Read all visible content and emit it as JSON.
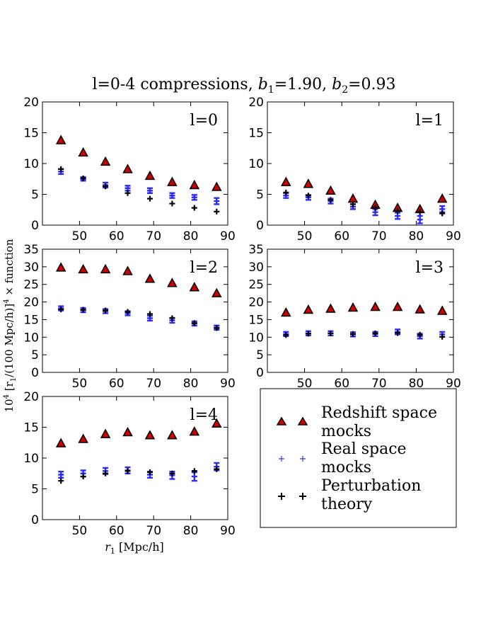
{
  "figure": {
    "title_main": "l=0-4 compressions, ",
    "b1_symbol": "b",
    "b1_sub": "1",
    "b1_value": "=1.90,  ",
    "b2_symbol": "b",
    "b2_sub": "2",
    "b2_value": "=0.93",
    "ylabel_prefix": "10",
    "ylabel_exp": "4",
    "ylabel_body": " [r",
    "ylabel_sub": "1",
    "ylabel_mid": "/(100  Mpc/h)]",
    "ylabel_exp2": "4",
    "ylabel_suffix": " × function",
    "xlabel_symbol": "r",
    "xlabel_sub": "1",
    "xlabel_units": "   [Mpc/h]"
  },
  "legend": [
    {
      "label_line1": "Redshift space",
      "label_line2": " mocks",
      "marker": "triangle",
      "color": "#cc0000"
    },
    {
      "label_line1": "Real space",
      "label_line2": " mocks",
      "marker": "plus",
      "color": "#3333ff"
    },
    {
      "label_line1": "Perturbation",
      "label_line2": " theory",
      "marker": "plus",
      "color": "#000000"
    }
  ],
  "chart_data": [
    {
      "type": "scatter",
      "panel_label": "l=0",
      "xlim": [
        40,
        90
      ],
      "ylim": [
        0,
        20
      ],
      "xticks": [
        50,
        60,
        70,
        80,
        90
      ],
      "yticks": [
        0,
        5,
        10,
        15,
        20
      ],
      "x": [
        45,
        51,
        57,
        63,
        69,
        75,
        81,
        87
      ],
      "series": [
        {
          "name": "Redshift space mocks",
          "values": [
            13.8,
            11.8,
            10.3,
            9.1,
            8.0,
            7.0,
            6.5,
            6.2
          ]
        },
        {
          "name": "Real space mocks",
          "values": [
            8.7,
            7.5,
            6.5,
            6.0,
            5.6,
            4.8,
            4.5,
            3.9
          ],
          "err": [
            0.4,
            0.3,
            0.4,
            0.4,
            0.4,
            0.4,
            0.4,
            0.5
          ]
        },
        {
          "name": "Perturbation theory",
          "values": [
            9.1,
            7.6,
            6.3,
            5.2,
            4.3,
            3.5,
            2.8,
            2.2
          ]
        }
      ]
    },
    {
      "type": "scatter",
      "panel_label": "l=1",
      "xlim": [
        40,
        90
      ],
      "ylim": [
        0,
        20
      ],
      "xticks": [
        50,
        60,
        70,
        80,
        90
      ],
      "yticks": [
        0,
        5,
        10,
        15,
        20
      ],
      "x": [
        45,
        51,
        57,
        63,
        69,
        75,
        81,
        87
      ],
      "series": [
        {
          "name": "Redshift space mocks",
          "values": [
            7.0,
            6.7,
            5.6,
            4.3,
            3.3,
            2.8,
            2.6,
            4.3
          ]
        },
        {
          "name": "Real space mocks",
          "values": [
            4.8,
            4.5,
            3.9,
            3.0,
            2.1,
            1.5,
            0.9,
            2.6
          ],
          "err": [
            0.4,
            0.4,
            0.4,
            0.4,
            0.5,
            0.5,
            0.6,
            0.5
          ]
        },
        {
          "name": "Perturbation theory",
          "values": [
            5.3,
            4.8,
            4.1,
            3.4,
            2.8,
            2.3,
            2.1,
            1.9
          ]
        }
      ]
    },
    {
      "type": "scatter",
      "panel_label": "l=2",
      "xlim": [
        40,
        90
      ],
      "ylim": [
        0,
        35
      ],
      "xticks": [
        50,
        60,
        70,
        80,
        90
      ],
      "yticks": [
        0,
        5,
        10,
        15,
        20,
        25,
        30,
        35
      ],
      "x": [
        45,
        51,
        57,
        63,
        69,
        75,
        81,
        87
      ],
      "series": [
        {
          "name": "Redshift space mocks",
          "values": [
            29.8,
            29.3,
            29.3,
            28.8,
            26.6,
            25.4,
            24.2,
            22.5
          ]
        },
        {
          "name": "Real space mocks",
          "values": [
            18.2,
            17.7,
            17.4,
            16.8,
            15.4,
            14.8,
            13.9,
            12.7
          ],
          "err": [
            0.6,
            0.6,
            0.6,
            0.6,
            0.7,
            0.7,
            0.6,
            0.6
          ]
        },
        {
          "name": "Perturbation theory",
          "values": [
            17.9,
            17.8,
            17.6,
            17.2,
            16.6,
            15.4,
            14.0,
            12.6
          ]
        }
      ]
    },
    {
      "type": "scatter",
      "panel_label": "l=3",
      "xlim": [
        40,
        90
      ],
      "ylim": [
        0,
        35
      ],
      "xticks": [
        50,
        60,
        70,
        80,
        90
      ],
      "yticks": [
        0,
        5,
        10,
        15,
        20,
        25,
        30,
        35
      ],
      "x": [
        45,
        51,
        57,
        63,
        69,
        75,
        81,
        87
      ],
      "series": [
        {
          "name": "Redshift space mocks",
          "values": [
            17.0,
            17.8,
            18.1,
            18.4,
            18.6,
            18.6,
            17.9,
            17.5
          ]
        },
        {
          "name": "Real space mocks",
          "values": [
            10.9,
            11.1,
            11.1,
            10.8,
            10.9,
            11.5,
            10.3,
            10.8
          ],
          "err": [
            0.6,
            0.6,
            0.6,
            0.6,
            0.6,
            0.7,
            0.7,
            0.7
          ]
        },
        {
          "name": "Perturbation theory",
          "values": [
            10.6,
            11.0,
            11.1,
            10.9,
            11.1,
            11.2,
            10.7,
            10.1
          ]
        }
      ]
    },
    {
      "type": "scatter",
      "panel_label": "l=4",
      "xlim": [
        40,
        90
      ],
      "ylim": [
        0,
        20
      ],
      "xticks": [
        50,
        60,
        70,
        80,
        90
      ],
      "yticks": [
        0,
        5,
        10,
        15,
        20
      ],
      "x": [
        45,
        51,
        57,
        63,
        69,
        75,
        81,
        87
      ],
      "series": [
        {
          "name": "Redshift space mocks",
          "values": [
            12.4,
            13.1,
            13.9,
            14.2,
            13.7,
            13.7,
            14.3,
            15.6
          ]
        },
        {
          "name": "Real space mocks",
          "values": [
            7.3,
            7.5,
            7.9,
            8.0,
            7.3,
            7.2,
            7.0,
            8.6
          ],
          "err": [
            0.5,
            0.5,
            0.5,
            0.5,
            0.5,
            0.6,
            0.7,
            0.6
          ]
        },
        {
          "name": "Perturbation theory",
          "values": [
            6.3,
            7.0,
            7.5,
            7.9,
            7.7,
            7.5,
            7.9,
            8.2
          ]
        }
      ]
    }
  ]
}
